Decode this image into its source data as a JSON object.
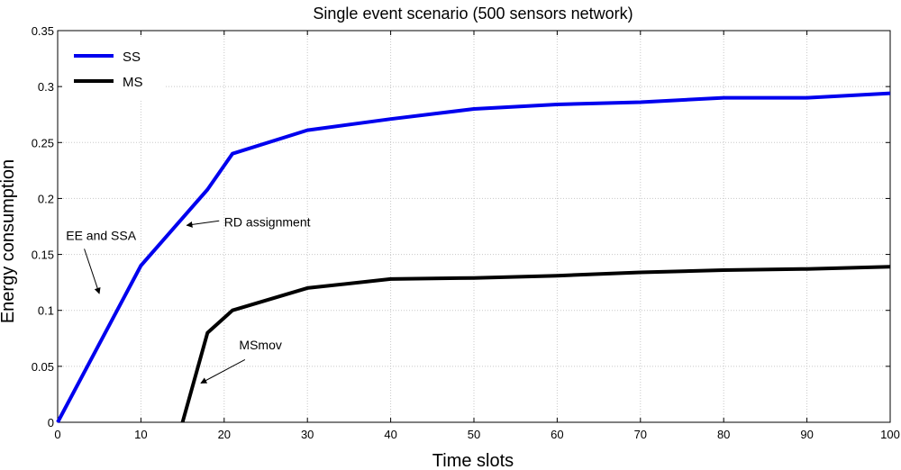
{
  "chart_data": {
    "type": "line",
    "title": "Single event scenario (500 sensors network)",
    "xlabel": "Time slots",
    "ylabel": "Energy consumption",
    "xlim": [
      0,
      100
    ],
    "ylim": [
      0,
      0.35
    ],
    "x_ticks": [
      0,
      10,
      20,
      30,
      40,
      50,
      60,
      70,
      80,
      90,
      100
    ],
    "y_ticks": [
      0,
      0.05,
      0.1,
      0.15,
      0.2,
      0.25,
      0.3,
      0.35
    ],
    "x_tick_labels": [
      "0",
      "10",
      "20",
      "30",
      "40",
      "50",
      "60",
      "70",
      "80",
      "90",
      "100"
    ],
    "y_tick_labels": [
      "0",
      "0.05",
      "0.1",
      "0.15",
      "0.2",
      "0.25",
      "0.3",
      "0.35"
    ],
    "grid": true,
    "legend_position": "top-left",
    "series": [
      {
        "name": "SS",
        "color": "#0000ee",
        "x": [
          0,
          10,
          18,
          21,
          30,
          40,
          50,
          60,
          70,
          80,
          90,
          100
        ],
        "y": [
          0,
          0.14,
          0.208,
          0.24,
          0.261,
          0.271,
          0.28,
          0.284,
          0.286,
          0.29,
          0.29,
          0.294
        ]
      },
      {
        "name": "MS",
        "color": "#000000",
        "x": [
          15,
          18,
          21,
          30,
          40,
          50,
          60,
          70,
          80,
          90,
          100
        ],
        "y": [
          0,
          0.08,
          0.1,
          0.12,
          0.128,
          0.129,
          0.131,
          0.134,
          0.136,
          0.137,
          0.139
        ]
      }
    ],
    "annotations": [
      {
        "text": "EE and SSA",
        "text_at": [
          1,
          0.163
        ],
        "arrow_from": [
          3.2,
          0.155
        ],
        "arrow_to": [
          5,
          0.115
        ]
      },
      {
        "text": "RD assignment",
        "text_at": [
          20,
          0.175
        ],
        "arrow_from": [
          19.4,
          0.18
        ],
        "arrow_to": [
          15.5,
          0.176
        ]
      },
      {
        "text": "MSmov",
        "text_at": [
          21.8,
          0.065
        ],
        "arrow_from": [
          22.5,
          0.056
        ],
        "arrow_to": [
          17.2,
          0.035
        ]
      }
    ]
  }
}
